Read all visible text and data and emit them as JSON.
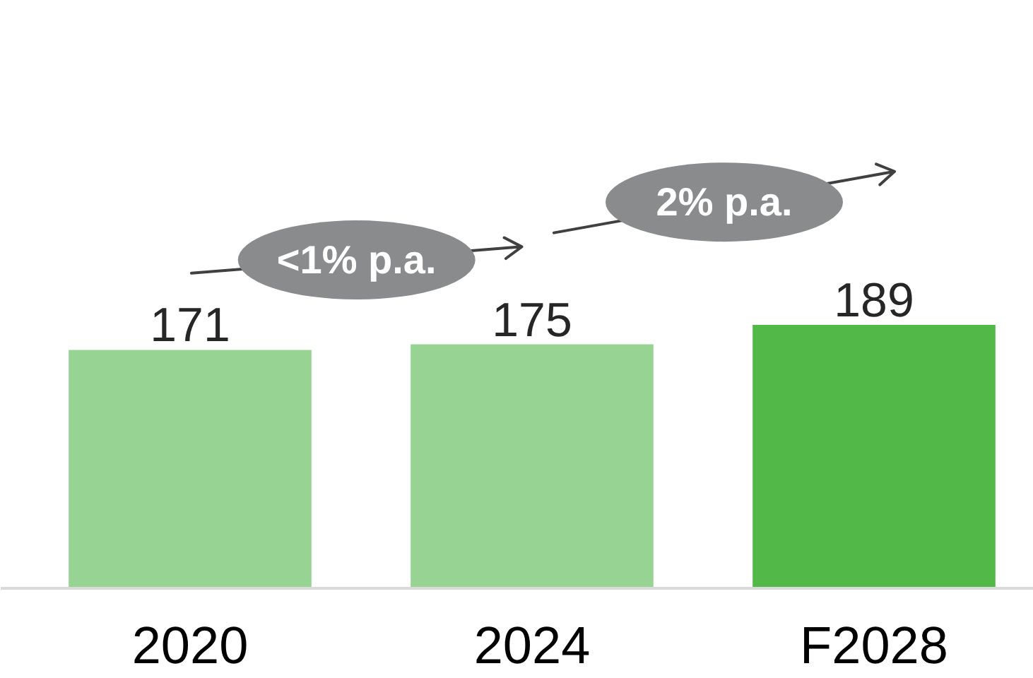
{
  "chart_data": {
    "type": "bar",
    "categories": [
      "2020",
      "2024",
      "F2028"
    ],
    "values": [
      171,
      175,
      189
    ],
    "colors": [
      "#97d494",
      "#97d494",
      "#52b848"
    ],
    "data_labels": true,
    "annotations": [
      "<1% p.a.",
      "2% p.a."
    ]
  }
}
